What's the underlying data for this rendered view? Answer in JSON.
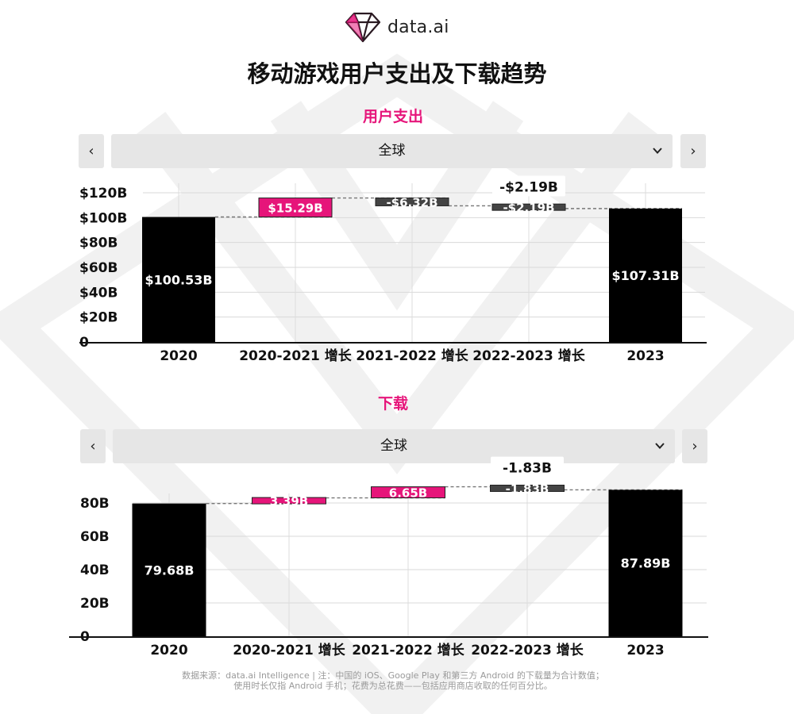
{
  "logo": {
    "text": "data.ai",
    "icon": "diamond-logo-icon"
  },
  "title": "移动游戏用户支出及下载趋势",
  "footnote": {
    "line1": "数据来源：data.ai Intelligence | 注：中国的 iOS、Google Play 和第三方 Android 的下载量为合计数值；",
    "line2": "使用时长仅指 Android 手机；花费为总花费——包括应用商店收取的任何百分比。"
  },
  "colors": {
    "accent": "#e6157a",
    "total_bar": "#000000",
    "increase_bar": "#e6157a",
    "decrease_bar": "#444444"
  },
  "sections": [
    {
      "title": "用户支出",
      "selector": {
        "prev": "‹",
        "next": "›",
        "selected": "全球"
      }
    },
    {
      "title": "下载",
      "selector": {
        "prev": "‹",
        "next": "›",
        "selected": "全球"
      }
    }
  ],
  "chart_data": [
    {
      "type": "bar",
      "subtype": "waterfall",
      "title": "用户支出",
      "categories": [
        "2020",
        "2020-2021 增长",
        "2021-2022 增长",
        "2022-2023 增长",
        "2023"
      ],
      "values": [
        100.53,
        15.29,
        -6.32,
        -2.19,
        107.31
      ],
      "kinds": [
        "total",
        "increase",
        "decrease",
        "decrease",
        "total"
      ],
      "data_labels": [
        "$100.53B",
        "$15.29B",
        "-$6.32B",
        "-$2.19B",
        "$107.31B"
      ],
      "tooltip": {
        "category_index": 3,
        "label": "-$2.19B"
      },
      "yticks": [
        {
          "value": 120,
          "label": "$120B"
        },
        {
          "value": 100,
          "label": "$100B"
        },
        {
          "value": 80,
          "label": "$80B"
        },
        {
          "value": 60,
          "label": "$60B"
        },
        {
          "value": 40,
          "label": "$40B"
        },
        {
          "value": 20,
          "label": "$20B"
        },
        {
          "value": 0,
          "label": "0"
        }
      ],
      "ylim": [
        0,
        120
      ],
      "grid": true,
      "connector_lines": "dashed"
    },
    {
      "type": "bar",
      "subtype": "waterfall",
      "title": "下载",
      "categories": [
        "2020",
        "2020-2021 增长",
        "2021-2022 增长",
        "2022-2023 增长",
        "2023"
      ],
      "values": [
        79.68,
        3.39,
        6.65,
        -1.83,
        87.89
      ],
      "kinds": [
        "total",
        "increase",
        "increase",
        "decrease",
        "total"
      ],
      "data_labels": [
        "79.68B",
        "3.39B",
        "6.65B",
        "-1.83B",
        "87.89B"
      ],
      "tooltip": {
        "category_index": 3,
        "label": "-1.83B"
      },
      "yticks": [
        {
          "value": 80,
          "label": "80B"
        },
        {
          "value": 60,
          "label": "60B"
        },
        {
          "value": 40,
          "label": "40B"
        },
        {
          "value": 20,
          "label": "20B"
        },
        {
          "value": 0,
          "label": "0"
        }
      ],
      "ylim": [
        0,
        80
      ],
      "grid": true,
      "connector_lines": "dashed"
    }
  ]
}
